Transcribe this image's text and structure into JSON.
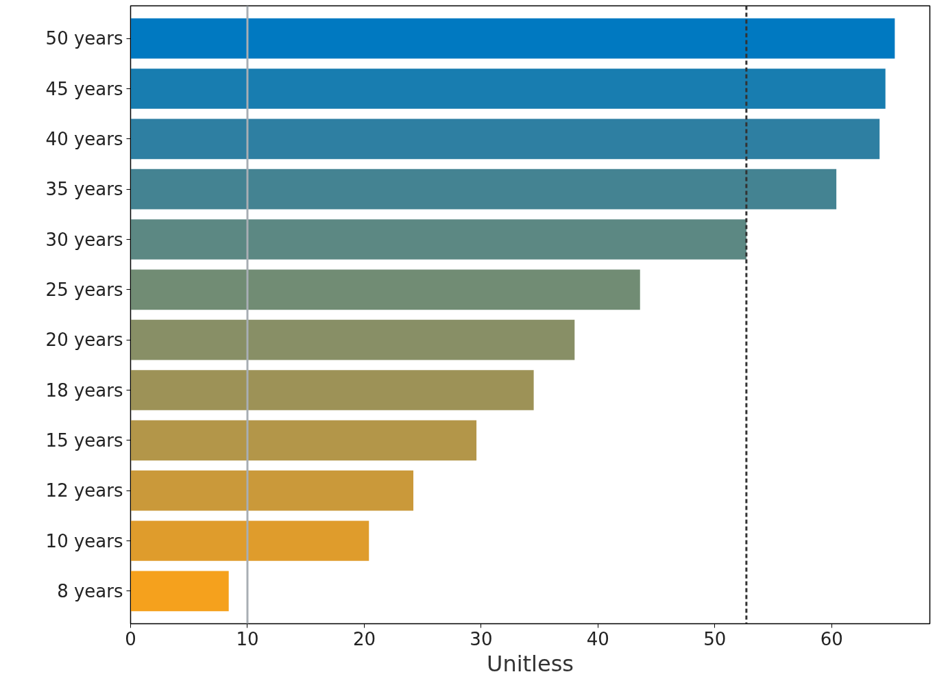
{
  "chart_data": {
    "type": "bar",
    "orientation": "horizontal",
    "xlabel": "Unitless",
    "categories": [
      "50 years",
      "45 years",
      "40 years",
      "35 years",
      "30 years",
      "25 years",
      "20 years",
      "18 years",
      "15 years",
      "12 years",
      "10 years",
      "8 years"
    ],
    "values": [
      65.4,
      64.6,
      64.1,
      60.4,
      52.7,
      43.6,
      38.0,
      34.5,
      29.6,
      24.2,
      20.4,
      8.4
    ],
    "colors": [
      "#0079c1",
      "#187db0",
      "#2e7fa2",
      "#448392",
      "#5c8883",
      "#718c74",
      "#888f66",
      "#9d9257",
      "#b39649",
      "#ca993a",
      "#df9c2c",
      "#f5a11d"
    ],
    "xlim": [
      0,
      68.4
    ],
    "xticks": [
      0,
      10,
      20,
      30,
      40,
      50,
      60
    ],
    "ref_lines": [
      {
        "axis": "x",
        "value": 52.7,
        "color": "#333333",
        "line_style": "dashed"
      },
      {
        "axis": "x",
        "value": 10,
        "color": "#a8aeb4",
        "line_style": "solid"
      }
    ],
    "grid": false
  }
}
